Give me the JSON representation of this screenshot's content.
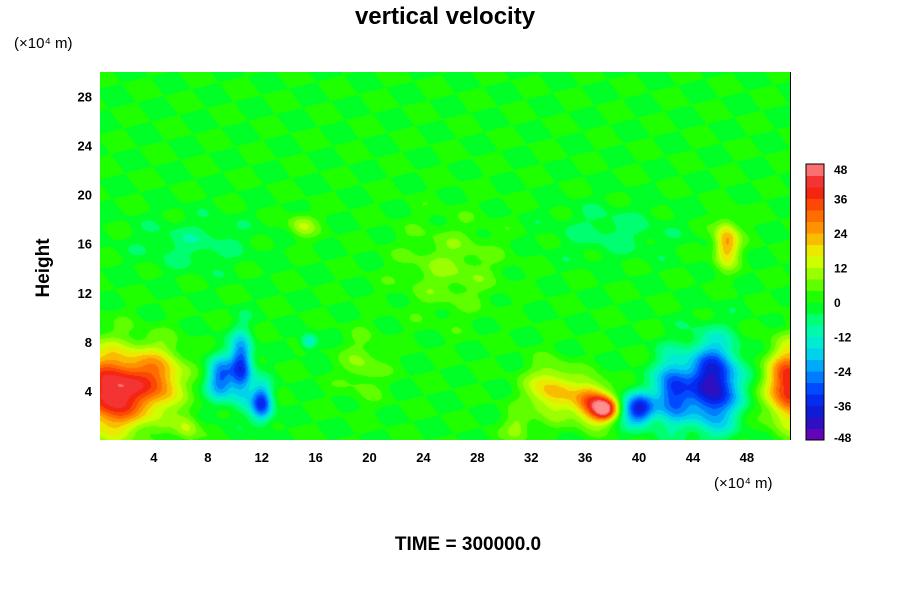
{
  "chart_data": {
    "type": "heatmap",
    "title": "vertical velocity",
    "ylabel": "Height",
    "x_unit": "(×10⁴ m)",
    "y_unit": "(×10⁴ m)",
    "footer": "TIME = 300000.0",
    "xlim": [
      0,
      51.2
    ],
    "ylim": [
      0,
      30
    ],
    "x_ticks": [
      4,
      8,
      12,
      16,
      20,
      24,
      28,
      32,
      36,
      40,
      44,
      48
    ],
    "y_ticks": [
      4,
      8,
      12,
      16,
      20,
      24,
      28
    ],
    "colorbar": {
      "range": [
        -48,
        48
      ],
      "ticks": [
        48,
        36,
        24,
        12,
        0,
        -12,
        -24,
        -36,
        -48
      ],
      "stops": [
        {
          "v": -48,
          "c": "#7a00b0"
        },
        {
          "v": -40,
          "c": "#1414c8"
        },
        {
          "v": -32,
          "c": "#0032ff"
        },
        {
          "v": -24,
          "c": "#0096ff"
        },
        {
          "v": -16,
          "c": "#00e6e6"
        },
        {
          "v": -8,
          "c": "#00ff96"
        },
        {
          "v": 0,
          "c": "#00ff00"
        },
        {
          "v": 8,
          "c": "#80ff00"
        },
        {
          "v": 16,
          "c": "#e6ff00"
        },
        {
          "v": 24,
          "c": "#ffa500"
        },
        {
          "v": 32,
          "c": "#ff5a00"
        },
        {
          "v": 40,
          "c": "#f01414"
        },
        {
          "v": 48,
          "c": "#ff9090"
        }
      ]
    },
    "features": [
      {
        "x": 1.0,
        "y": 4.0,
        "sx": 2.8,
        "sy": 3.2,
        "w": 46
      },
      {
        "x": 4.5,
        "y": 5.0,
        "sx": 1.8,
        "sy": 2.5,
        "w": 22
      },
      {
        "x": 9.0,
        "y": 5.0,
        "sx": 1.0,
        "sy": 1.8,
        "w": -28
      },
      {
        "x": 10.5,
        "y": 6.0,
        "sx": 0.8,
        "sy": 2.5,
        "w": -34
      },
      {
        "x": 12.0,
        "y": 3.0,
        "sx": 0.8,
        "sy": 1.5,
        "w": -34
      },
      {
        "x": 15.5,
        "y": 8.0,
        "sx": 0.6,
        "sy": 0.6,
        "w": -16
      },
      {
        "x": 19.5,
        "y": 6.0,
        "sx": 1.5,
        "sy": 2.5,
        "w": 8
      },
      {
        "x": 33.5,
        "y": 4.0,
        "sx": 1.8,
        "sy": 2.0,
        "w": 22
      },
      {
        "x": 36.5,
        "y": 3.0,
        "sx": 1.3,
        "sy": 1.6,
        "w": 34
      },
      {
        "x": 37.5,
        "y": 2.5,
        "sx": 0.9,
        "sy": 0.9,
        "w": 38
      },
      {
        "x": 40.0,
        "y": 2.5,
        "sx": 1.2,
        "sy": 1.3,
        "w": -36
      },
      {
        "x": 42.5,
        "y": 4.0,
        "sx": 1.3,
        "sy": 2.6,
        "w": -32
      },
      {
        "x": 45.5,
        "y": 4.5,
        "sx": 1.8,
        "sy": 3.3,
        "w": -44
      },
      {
        "x": 51.2,
        "y": 4.5,
        "sx": 1.6,
        "sy": 3.0,
        "w": 42
      },
      {
        "x": 46.5,
        "y": 16.0,
        "sx": 0.9,
        "sy": 1.8,
        "w": 26
      },
      {
        "x": 26.0,
        "y": 14.0,
        "sx": 3.5,
        "sy": 3.5,
        "w": 8
      },
      {
        "x": 15.0,
        "y": 17.5,
        "sx": 1.0,
        "sy": 1.0,
        "w": 12
      },
      {
        "x": 7.0,
        "y": 16.0,
        "sx": 4.0,
        "sy": 2.0,
        "w": -6
      },
      {
        "x": 38.0,
        "y": 17.0,
        "sx": 4.0,
        "sy": 2.0,
        "w": -6
      },
      {
        "x": 6.5,
        "y": 1.0,
        "sx": 0.9,
        "sy": 1.2,
        "w": 12
      },
      {
        "x": 31.0,
        "y": 1.0,
        "sx": 1.0,
        "sy": 1.2,
        "w": 10
      }
    ]
  }
}
